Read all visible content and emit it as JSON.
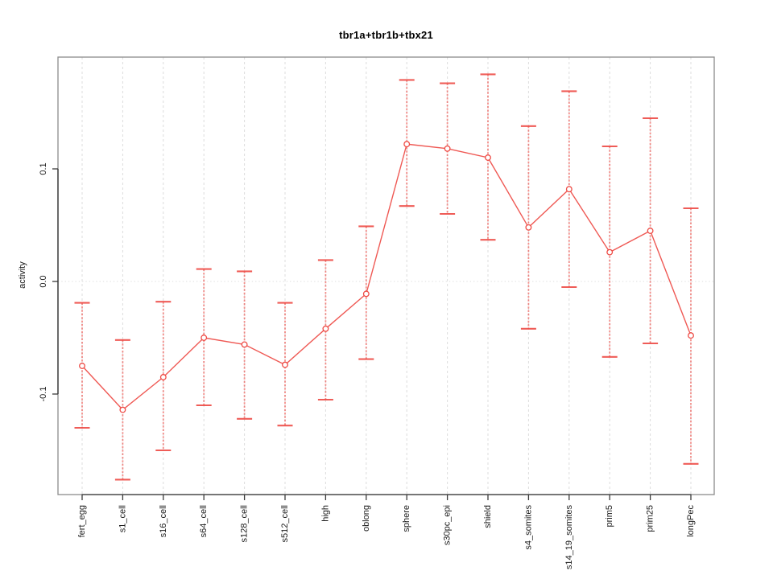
{
  "chart_data": {
    "type": "line",
    "title": "tbr1a+tbr1b+tbx21",
    "xlabel": "",
    "ylabel": "activity",
    "legend_position": "none",
    "error_bars": true,
    "grid": {
      "vertical_dashed_at_each_category": true,
      "horizontal_dotted_at_zero": true
    },
    "ylim": [
      -0.189,
      0.199
    ],
    "y_ticks": [
      -0.1,
      0.0,
      0.1
    ],
    "categories": [
      "fert_egg",
      "s1_cell",
      "s16_cell",
      "s64_cell",
      "s128_cell",
      "s512_cell",
      "high",
      "oblong",
      "sphere",
      "s30pc_epi",
      "shield",
      "s4_somites",
      "s14_19_somites",
      "prim5",
      "prim25",
      "longPec"
    ],
    "series": [
      {
        "name": "activity",
        "values": [
          -0.075,
          -0.114,
          -0.085,
          -0.05,
          -0.056,
          -0.074,
          -0.042,
          -0.011,
          0.122,
          0.118,
          0.11,
          0.048,
          0.082,
          0.026,
          0.045,
          -0.048
        ],
        "lower": [
          -0.13,
          -0.176,
          -0.15,
          -0.11,
          -0.122,
          -0.128,
          -0.105,
          -0.069,
          0.067,
          0.06,
          0.037,
          -0.042,
          -0.005,
          -0.067,
          -0.055,
          -0.162
        ],
        "upper": [
          -0.019,
          -0.052,
          -0.018,
          0.011,
          0.009,
          -0.019,
          0.019,
          0.049,
          0.179,
          0.176,
          0.184,
          0.138,
          0.169,
          0.12,
          0.145,
          0.065
        ]
      }
    ],
    "colors": {
      "series": "#EE4B45",
      "series_light": "#F59B96",
      "grid": "#DCDCDC",
      "box": "#8C8C8C",
      "axis": "#3A3A3A",
      "text": "#1A1A1A"
    }
  }
}
